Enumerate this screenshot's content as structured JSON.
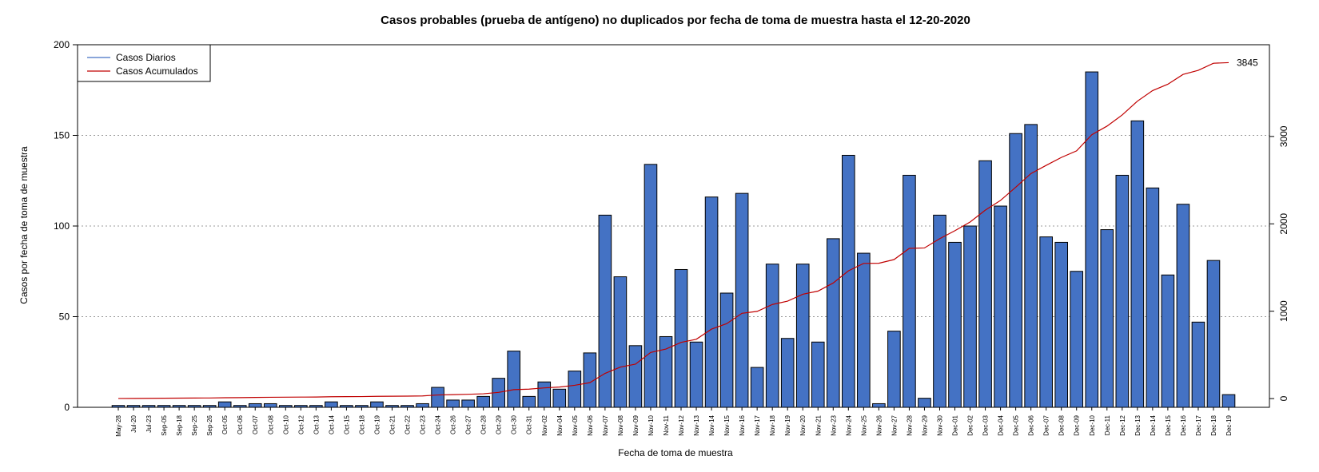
{
  "chart_data": {
    "type": "bar",
    "title": "Casos probables (prueba de antígeno) no duplicados por fecha de toma de muestra hasta el 12-20-2020",
    "xlabel": "Fecha de toma de muestra",
    "ylabel": "Casos por fecha de toma de muestra",
    "ylim": [
      0,
      200
    ],
    "yticks": [
      0,
      50,
      100,
      150,
      200
    ],
    "y2lim": [
      -100,
      4050
    ],
    "y2ticks": [
      0,
      1000,
      2000,
      3000
    ],
    "grid": "horizontal-dotted",
    "legend_position": "top-left",
    "categories": [
      "May-28",
      "Jul-20",
      "Jul-23",
      "Sep-05",
      "Sep-18",
      "Sep-25",
      "Sep-26",
      "Oct-05",
      "Oct-06",
      "Oct-07",
      "Oct-08",
      "Oct-10",
      "Oct-12",
      "Oct-13",
      "Oct-14",
      "Oct-15",
      "Oct-18",
      "Oct-19",
      "Oct-21",
      "Oct-22",
      "Oct-23",
      "Oct-24",
      "Oct-26",
      "Oct-27",
      "Oct-28",
      "Oct-29",
      "Oct-30",
      "Oct-31",
      "Nov-02",
      "Nov-04",
      "Nov-05",
      "Nov-06",
      "Nov-07",
      "Nov-08",
      "Nov-09",
      "Nov-10",
      "Nov-11",
      "Nov-12",
      "Nov-13",
      "Nov-14",
      "Nov-15",
      "Nov-16",
      "Nov-17",
      "Nov-18",
      "Nov-19",
      "Nov-20",
      "Nov-21",
      "Nov-23",
      "Nov-24",
      "Nov-25",
      "Nov-26",
      "Nov-27",
      "Nov-28",
      "Nov-29",
      "Nov-30",
      "Dec-01",
      "Dec-02",
      "Dec-03",
      "Dec-04",
      "Dec-05",
      "Dec-06",
      "Dec-07",
      "Dec-08",
      "Dec-09",
      "Dec-10",
      "Dec-11",
      "Dec-12",
      "Dec-13",
      "Dec-14",
      "Dec-15",
      "Dec-16",
      "Dec-17",
      "Dec-18",
      "Dec-19"
    ],
    "series": [
      {
        "name": "Casos Diarios",
        "color": "#4472C4",
        "values": [
          1,
          1,
          1,
          1,
          1,
          1,
          1,
          3,
          1,
          2,
          2,
          1,
          1,
          1,
          3,
          1,
          1,
          3,
          1,
          1,
          2,
          11,
          4,
          4,
          6,
          16,
          31,
          6,
          14,
          10,
          20,
          30,
          106,
          72,
          34,
          134,
          39,
          76,
          36,
          116,
          63,
          118,
          22,
          79,
          38,
          79,
          36,
          93,
          139,
          85,
          2,
          42,
          128,
          5,
          106,
          91,
          100,
          136,
          111,
          151,
          156,
          94,
          91,
          75,
          185,
          98,
          128,
          158,
          121,
          73,
          112,
          47,
          81,
          7
        ]
      },
      {
        "name": "Casos Acumulados",
        "color": "#C00000",
        "values": [
          1,
          2,
          3,
          4,
          5,
          6,
          7,
          10,
          11,
          13,
          15,
          16,
          17,
          18,
          21,
          22,
          23,
          26,
          27,
          28,
          30,
          41,
          45,
          49,
          55,
          71,
          102,
          108,
          122,
          132,
          152,
          182,
          288,
          360,
          394,
          528,
          567,
          643,
          679,
          795,
          858,
          976,
          998,
          1077,
          1115,
          1194,
          1230,
          1323,
          1462,
          1547,
          1549,
          1591,
          1719,
          1724,
          1830,
          1921,
          2021,
          2157,
          2268,
          2419,
          2575,
          2669,
          2760,
          2835,
          3020,
          3118,
          3246,
          3404,
          3525,
          3598,
          3710,
          3757,
          3838,
          3845
        ]
      }
    ],
    "final_label": "3845"
  }
}
